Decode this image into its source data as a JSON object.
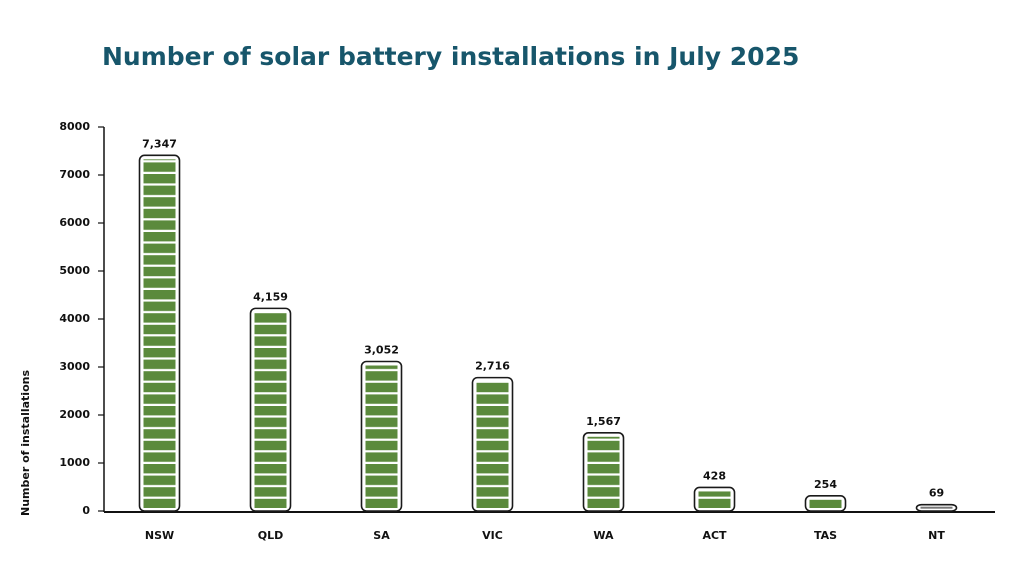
{
  "chart_data": {
    "type": "bar",
    "title": "Number of solar battery installations in July 2025",
    "y_label": "Number of installations",
    "categories": [
      "NSW",
      "QLD",
      "SA",
      "VIC",
      "WA",
      "ACT",
      "TAS",
      "NT"
    ],
    "values": [
      7347,
      4159,
      3052,
      2716,
      1567,
      428,
      254,
      69
    ],
    "value_labels": [
      "7,347",
      "4,159",
      "3,052",
      "2,716",
      "1,567",
      "428",
      "254",
      "69"
    ],
    "color": "#5b8a3c",
    "ylim": [
      0,
      8000
    ],
    "yticks": [
      0,
      1000,
      2000,
      3000,
      4000,
      5000,
      6000,
      7000,
      8000
    ],
    "grid": false
  }
}
